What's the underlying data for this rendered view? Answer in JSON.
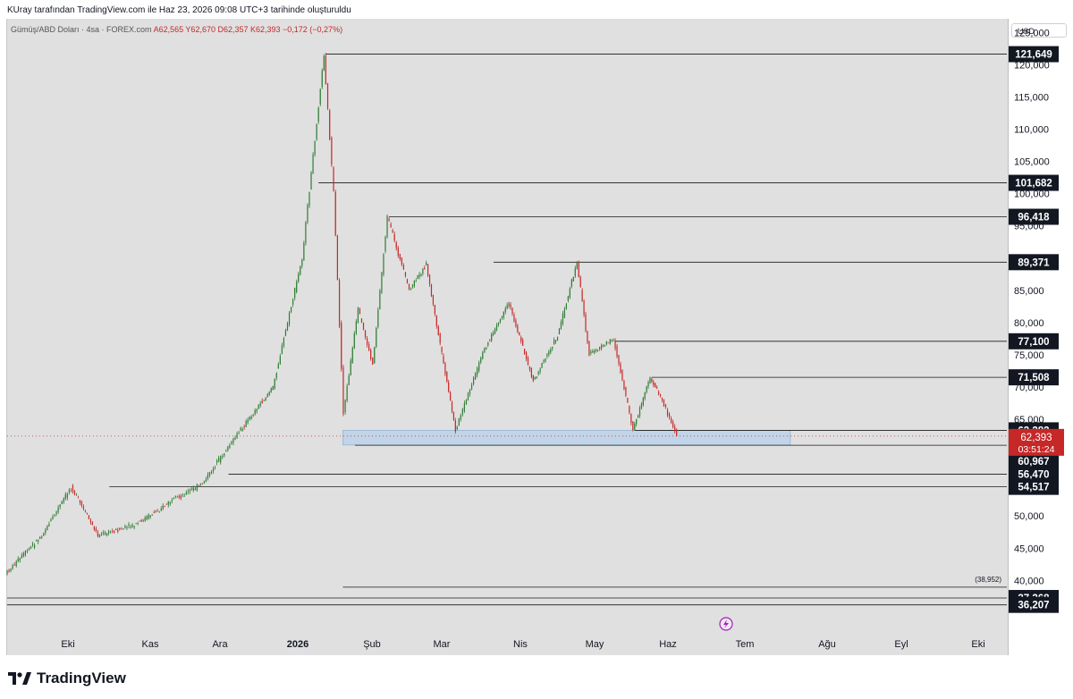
{
  "credit": "KUray tarafından TradingView.com ile Haz 23, 2026 09:08 UTC+3 tarihinde oluşturuldu",
  "symbol": {
    "name": "Gümüş/ABD Doları · 4sa · FOREX.com",
    "ohlc": "A62,565  Y62,670  D62,357  K62,393  −0,172 (−0,27%)"
  },
  "currency": "USD",
  "brand": "TradingView",
  "colors": {
    "up": "#2e7d32",
    "down": "#c62828",
    "price_label": "#c62828",
    "level_label": "#131722",
    "zone": "#b8d0ea"
  },
  "chart_data": {
    "type": "line",
    "title": "Gümüş/ABD Doları · 4sa · FOREX.com",
    "xlabel": "",
    "ylabel": "",
    "ylim": [
      32000,
      127000
    ],
    "y_ticks": [
      40000,
      45000,
      50000,
      55000,
      60000,
      65000,
      70000,
      75000,
      80000,
      85000,
      90000,
      95000,
      100000,
      105000,
      110000,
      115000,
      120000,
      125000
    ],
    "y_tick_labels": [
      "40,000",
      "45,000",
      "50,000",
      "55,000",
      "60,000",
      "65,000",
      "70,000",
      "75,000",
      "80,000",
      "85,000",
      "90,000",
      "95,000",
      "100,000",
      "105,000",
      "110,000",
      "115,000",
      "120,000",
      "125,000"
    ],
    "x_ticks": [
      "Eki",
      "Kas",
      "Ara",
      "2026",
      "Şub",
      "Mar",
      "Nis",
      "May",
      "Haz",
      "Tem",
      "Ağu",
      "Eyl",
      "Eki"
    ],
    "grid": false,
    "series": [
      {
        "x": [
          "2025-09-20",
          "2025-10-05",
          "2025-10-17",
          "2025-10-28",
          "2025-11-12",
          "2025-11-26",
          "2025-12-10",
          "2025-12-25",
          "2026-01-08",
          "2026-01-20",
          "2026-01-29",
          "2026-02-02",
          "2026-02-06",
          "2026-02-12",
          "2026-02-18",
          "2026-02-24",
          "2026-03-05",
          "2026-03-12",
          "2026-03-17",
          "2026-03-24",
          "2026-04-05",
          "2026-04-15",
          "2026-04-25",
          "2026-05-05",
          "2026-05-13",
          "2026-05-18",
          "2026-05-28",
          "2026-06-05",
          "2026-06-12",
          "2026-06-17",
          "2026-06-23"
        ],
        "values": [
          41000,
          47000,
          54500,
          47000,
          48500,
          52000,
          55000,
          63000,
          70000,
          90000,
          121649,
          100000,
          66000,
          82000,
          73500,
          96418,
          85000,
          89000,
          78000,
          63282,
          76000,
          83000,
          71000,
          78000,
          89371,
          75000,
          77500,
          63282,
          71508,
          68000,
          62393
        ]
      }
    ],
    "levels": [
      {
        "label": "121,649",
        "value": 121649
      },
      {
        "label": "101,682",
        "value": 101682
      },
      {
        "label": "96,418",
        "value": 96418
      },
      {
        "label": "89,371",
        "value": 89371
      },
      {
        "label": "77,100",
        "value": 77100
      },
      {
        "label": "71,508",
        "value": 71508
      },
      {
        "label": "63,282",
        "value": 63282
      },
      {
        "label": "60,967",
        "value": 60967
      },
      {
        "label": "56,470",
        "value": 56470
      },
      {
        "label": "54,517",
        "value": 54517
      },
      {
        "label": "37,268",
        "value": 37268
      },
      {
        "label": "36,207",
        "value": 36207
      }
    ],
    "measure_label": "(38,952)",
    "current_price": {
      "label": "62,393",
      "value": 62393,
      "countdown": "03:51:24"
    },
    "support_zone": [
      61000,
      63300
    ]
  }
}
